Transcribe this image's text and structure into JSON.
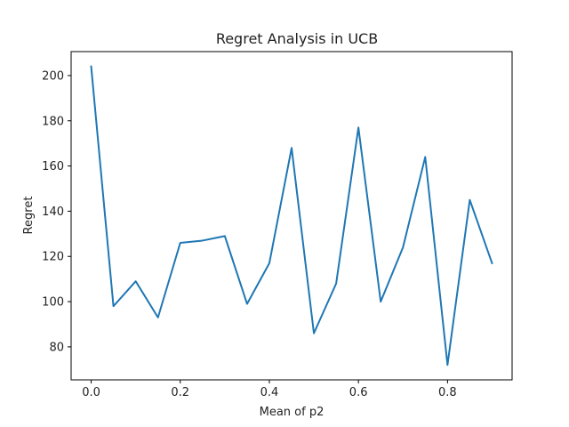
{
  "chart_data": {
    "type": "line",
    "title": "Regret Analysis in UCB",
    "xlabel": "Mean of p2",
    "ylabel": "Regret",
    "xlim": [
      -0.045,
      0.945
    ],
    "ylim": [
      65.4,
      210.6
    ],
    "xticks": [
      0.0,
      0.2,
      0.4,
      0.6,
      0.8
    ],
    "xtick_labels": [
      "0.0",
      "0.2",
      "0.4",
      "0.6",
      "0.8"
    ],
    "yticks": [
      80,
      100,
      120,
      140,
      160,
      180,
      200
    ],
    "ytick_labels": [
      "80",
      "100",
      "120",
      "140",
      "160",
      "180",
      "200"
    ],
    "grid": false,
    "series": [
      {
        "color": "#1f77b4",
        "x": [
          0.0,
          0.05,
          0.1,
          0.15,
          0.2,
          0.25,
          0.3,
          0.35,
          0.4,
          0.45,
          0.5,
          0.55,
          0.6,
          0.65,
          0.7,
          0.75,
          0.8,
          0.85,
          0.9
        ],
        "y": [
          204,
          98,
          109,
          93,
          126,
          127,
          129,
          99,
          117,
          168,
          86,
          108,
          177,
          100,
          124,
          164,
          72,
          145,
          117
        ]
      }
    ]
  }
}
